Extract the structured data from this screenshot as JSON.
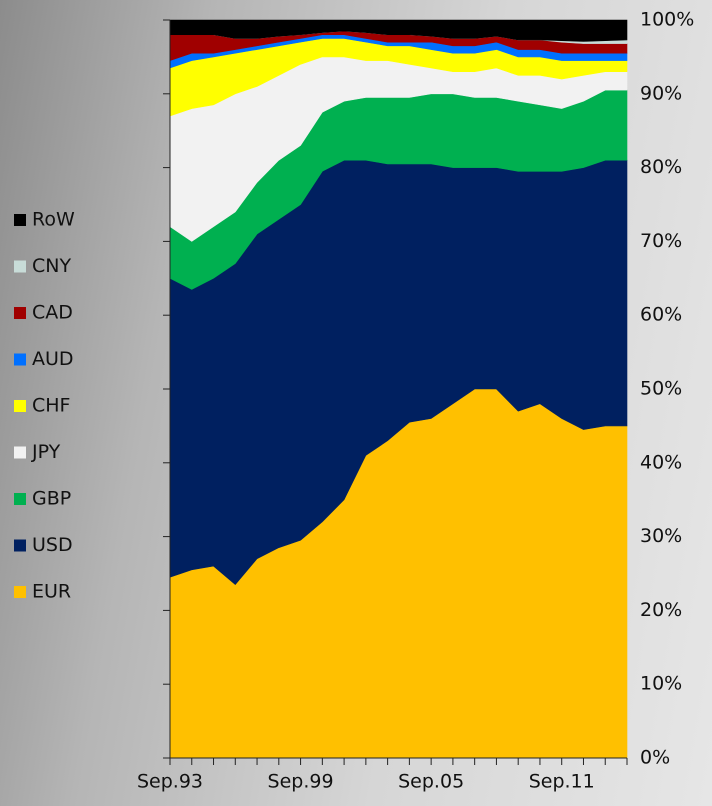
{
  "chart_data": {
    "type": "stacked_area",
    "categories": [
      "Sep.93",
      null,
      null,
      null,
      null,
      null,
      "Sep.99",
      null,
      null,
      null,
      null,
      null,
      "Sep.05",
      null,
      null,
      null,
      null,
      null,
      "Sep.11",
      null,
      null,
      null
    ],
    "series": [
      {
        "name": "EUR",
        "color": "#ffc000",
        "values": [
          24.5,
          25.5,
          26,
          23.5,
          27,
          28.5,
          29.5,
          32,
          35,
          41,
          43,
          45.5,
          46,
          48,
          50,
          50,
          47,
          48,
          46,
          44.5,
          45,
          45
        ]
      },
      {
        "name": "USD",
        "color": "#002060",
        "values": [
          40.5,
          38,
          39,
          43.5,
          44,
          44.5,
          45.5,
          47.5,
          46,
          40,
          37.5,
          35,
          34.5,
          32,
          30,
          30,
          32.5,
          31.5,
          33.5,
          35.5,
          36,
          36
        ]
      },
      {
        "name": "GBP",
        "color": "#00b050",
        "values": [
          7,
          6.5,
          7,
          7,
          7,
          8,
          8,
          8,
          8,
          8.5,
          9,
          9,
          9.5,
          10,
          9.5,
          9.5,
          9.5,
          9,
          8.5,
          9,
          9.5,
          9.5
        ]
      },
      {
        "name": "JPY",
        "color": "#f2f2f2",
        "values": [
          15,
          18,
          16.5,
          16,
          13,
          11.5,
          11,
          7.5,
          6,
          5,
          5,
          4.5,
          3.5,
          3,
          3.5,
          4,
          3.5,
          4,
          4,
          3.5,
          2.5,
          2.5
        ]
      },
      {
        "name": "CHF",
        "color": "#ffff00",
        "values": [
          6.5,
          6.5,
          6.5,
          5.5,
          5,
          4,
          3,
          2.5,
          2.5,
          2.5,
          2,
          2.5,
          2.5,
          2.5,
          2.5,
          2.5,
          2.5,
          2.5,
          2.5,
          2,
          1.5,
          1.5
        ]
      },
      {
        "name": "AUD",
        "color": "#0070ff",
        "values": [
          1,
          1,
          0.5,
          0.5,
          0.5,
          0.5,
          0.5,
          0.5,
          0.5,
          0.5,
          0.5,
          0.5,
          1,
          1,
          1,
          1,
          1,
          1,
          1,
          1,
          1,
          1
        ]
      },
      {
        "name": "CAD",
        "color": "#a00000",
        "values": [
          3.5,
          2.5,
          2.5,
          1.5,
          1,
          0.8,
          0.5,
          0.3,
          0.5,
          0.8,
          1,
          1,
          0.8,
          1,
          1,
          0.8,
          1.3,
          1.3,
          1.5,
          1.3,
          1.3,
          1.3
        ]
      },
      {
        "name": "CNY",
        "color": "#c8dcd8",
        "values": [
          0,
          0,
          0,
          0,
          0,
          0,
          0,
          0,
          0,
          0,
          0,
          0,
          0,
          0,
          0,
          0,
          0,
          0,
          0.2,
          0.3,
          0.4,
          0.5
        ]
      },
      {
        "name": "RoW",
        "color": "#000000",
        "values": [
          2,
          2,
          2,
          2.5,
          2.5,
          2.2,
          2,
          1.7,
          1.5,
          1.7,
          2,
          2,
          2.2,
          2.5,
          2.5,
          2.2,
          2.7,
          2.7,
          2.8,
          2.9,
          2.8,
          2.7
        ]
      }
    ],
    "ylim": [
      0,
      100
    ],
    "yticks": [
      {
        "value": 0,
        "label": "0%"
      },
      {
        "value": 10,
        "label": "10%"
      },
      {
        "value": 20,
        "label": "20%"
      },
      {
        "value": 30,
        "label": "30%"
      },
      {
        "value": 40,
        "label": "40%"
      },
      {
        "value": 50,
        "label": "50%"
      },
      {
        "value": 60,
        "label": "60%"
      },
      {
        "value": 70,
        "label": "70%"
      },
      {
        "value": 80,
        "label": "80%"
      },
      {
        "value": 90,
        "label": "90%"
      },
      {
        "value": 100,
        "label": "100%"
      }
    ],
    "grid": false
  }
}
